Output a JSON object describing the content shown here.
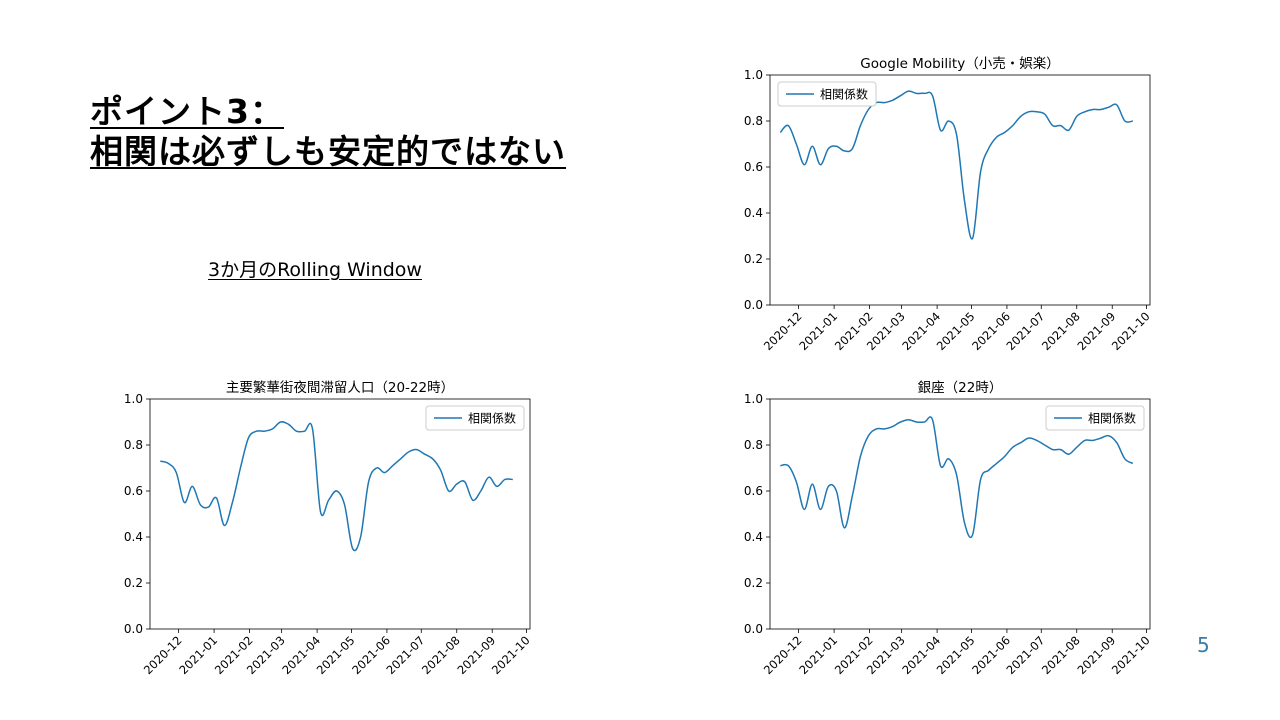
{
  "slide": {
    "heading_line1": "ポイント3：",
    "heading_line2": "相関は必ずしも安定的ではない",
    "subtitle": "3か月のRolling Window",
    "page_number": "5",
    "line_color": "#1f77b4"
  },
  "chart_data": [
    {
      "type": "line",
      "title": "Google Mobility（小売・娯楽）",
      "legend": "top-left",
      "series": [
        {
          "name": "相関係数",
          "x": [
            "2020-11-15",
            "2020-11-22",
            "2020-11-29",
            "2020-12-06",
            "2020-12-13",
            "2020-12-20",
            "2020-12-27",
            "2021-01-03",
            "2021-01-10",
            "2021-01-17",
            "2021-01-24",
            "2021-01-31",
            "2021-02-07",
            "2021-02-14",
            "2021-02-21",
            "2021-02-28",
            "2021-03-07",
            "2021-03-14",
            "2021-03-21",
            "2021-03-28",
            "2021-04-04",
            "2021-04-11",
            "2021-04-18",
            "2021-04-25",
            "2021-05-02",
            "2021-05-09",
            "2021-05-16",
            "2021-05-23",
            "2021-05-30",
            "2021-06-06",
            "2021-06-13",
            "2021-06-20",
            "2021-06-27",
            "2021-07-04",
            "2021-07-11",
            "2021-07-18",
            "2021-07-25",
            "2021-08-01",
            "2021-08-08",
            "2021-08-15",
            "2021-08-22",
            "2021-08-29",
            "2021-09-05",
            "2021-09-12",
            "2021-09-19"
          ],
          "values": [
            0.75,
            0.78,
            0.7,
            0.61,
            0.69,
            0.61,
            0.68,
            0.69,
            0.67,
            0.68,
            0.78,
            0.85,
            0.88,
            0.88,
            0.89,
            0.91,
            0.93,
            0.92,
            0.92,
            0.91,
            0.76,
            0.8,
            0.74,
            0.45,
            0.29,
            0.58,
            0.68,
            0.73,
            0.75,
            0.78,
            0.82,
            0.84,
            0.84,
            0.83,
            0.78,
            0.78,
            0.76,
            0.82,
            0.84,
            0.85,
            0.85,
            0.86,
            0.87,
            0.8,
            0.8
          ]
        }
      ],
      "ylim": [
        0,
        1
      ],
      "xlim": [
        "2020-11-06",
        "2021-10-04"
      ],
      "yticks": [
        "0.0",
        "0.2",
        "0.4",
        "0.6",
        "0.8",
        "1.0"
      ],
      "xticks": [
        {
          "date": "2020-12-01",
          "label": "2020-12"
        },
        {
          "date": "2021-01-01",
          "label": "2021-01"
        },
        {
          "date": "2021-02-01",
          "label": "2021-02"
        },
        {
          "date": "2021-03-01",
          "label": "2021-03"
        },
        {
          "date": "2021-04-01",
          "label": "2021-04"
        },
        {
          "date": "2021-05-01",
          "label": "2021-05"
        },
        {
          "date": "2021-06-01",
          "label": "2021-06"
        },
        {
          "date": "2021-07-01",
          "label": "2021-07"
        },
        {
          "date": "2021-08-01",
          "label": "2021-08"
        },
        {
          "date": "2021-09-01",
          "label": "2021-09"
        },
        {
          "date": "2021-10-01",
          "label": "2021-10"
        }
      ]
    },
    {
      "type": "line",
      "title": "主要繁華街夜間滞留人口（20-22時）",
      "legend": "top-right",
      "series": [
        {
          "name": "相関係数",
          "x": [
            "2020-11-15",
            "2020-11-22",
            "2020-11-29",
            "2020-12-06",
            "2020-12-13",
            "2020-12-20",
            "2020-12-27",
            "2021-01-03",
            "2021-01-10",
            "2021-01-17",
            "2021-01-24",
            "2021-01-31",
            "2021-02-07",
            "2021-02-14",
            "2021-02-21",
            "2021-02-28",
            "2021-03-07",
            "2021-03-14",
            "2021-03-21",
            "2021-03-28",
            "2021-04-04",
            "2021-04-11",
            "2021-04-18",
            "2021-04-25",
            "2021-05-02",
            "2021-05-09",
            "2021-05-16",
            "2021-05-23",
            "2021-05-30",
            "2021-06-06",
            "2021-06-13",
            "2021-06-20",
            "2021-06-27",
            "2021-07-04",
            "2021-07-11",
            "2021-07-18",
            "2021-07-25",
            "2021-08-01",
            "2021-08-08",
            "2021-08-15",
            "2021-08-22",
            "2021-08-29",
            "2021-09-05",
            "2021-09-12",
            "2021-09-19"
          ],
          "values": [
            0.73,
            0.72,
            0.68,
            0.55,
            0.62,
            0.54,
            0.53,
            0.57,
            0.45,
            0.55,
            0.7,
            0.83,
            0.86,
            0.86,
            0.87,
            0.9,
            0.89,
            0.86,
            0.86,
            0.87,
            0.51,
            0.56,
            0.6,
            0.54,
            0.35,
            0.4,
            0.64,
            0.7,
            0.68,
            0.71,
            0.74,
            0.77,
            0.78,
            0.76,
            0.74,
            0.69,
            0.6,
            0.63,
            0.64,
            0.56,
            0.6,
            0.66,
            0.62,
            0.65,
            0.65
          ]
        }
      ],
      "ylim": [
        0,
        1
      ],
      "xlim": [
        "2020-11-06",
        "2021-10-04"
      ],
      "yticks": [
        "0.0",
        "0.2",
        "0.4",
        "0.6",
        "0.8",
        "1.0"
      ],
      "xticks": [
        {
          "date": "2020-12-01",
          "label": "2020-12"
        },
        {
          "date": "2021-01-01",
          "label": "2021-01"
        },
        {
          "date": "2021-02-01",
          "label": "2021-02"
        },
        {
          "date": "2021-03-01",
          "label": "2021-03"
        },
        {
          "date": "2021-04-01",
          "label": "2021-04"
        },
        {
          "date": "2021-05-01",
          "label": "2021-05"
        },
        {
          "date": "2021-06-01",
          "label": "2021-06"
        },
        {
          "date": "2021-07-01",
          "label": "2021-07"
        },
        {
          "date": "2021-08-01",
          "label": "2021-08"
        },
        {
          "date": "2021-09-01",
          "label": "2021-09"
        },
        {
          "date": "2021-10-01",
          "label": "2021-10"
        }
      ]
    },
    {
      "type": "line",
      "title": "銀座（22時）",
      "legend": "top-right",
      "series": [
        {
          "name": "相関係数",
          "x": [
            "2020-11-15",
            "2020-11-22",
            "2020-11-29",
            "2020-12-06",
            "2020-12-13",
            "2020-12-20",
            "2020-12-27",
            "2021-01-03",
            "2021-01-10",
            "2021-01-17",
            "2021-01-24",
            "2021-01-31",
            "2021-02-07",
            "2021-02-14",
            "2021-02-21",
            "2021-02-28",
            "2021-03-07",
            "2021-03-14",
            "2021-03-21",
            "2021-03-28",
            "2021-04-04",
            "2021-04-11",
            "2021-04-18",
            "2021-04-25",
            "2021-05-02",
            "2021-05-09",
            "2021-05-16",
            "2021-05-23",
            "2021-05-30",
            "2021-06-06",
            "2021-06-13",
            "2021-06-20",
            "2021-06-27",
            "2021-07-04",
            "2021-07-11",
            "2021-07-18",
            "2021-07-25",
            "2021-08-01",
            "2021-08-08",
            "2021-08-15",
            "2021-08-22",
            "2021-08-29",
            "2021-09-05",
            "2021-09-12",
            "2021-09-19"
          ],
          "values": [
            0.71,
            0.71,
            0.64,
            0.52,
            0.63,
            0.52,
            0.62,
            0.6,
            0.44,
            0.58,
            0.75,
            0.84,
            0.87,
            0.87,
            0.88,
            0.9,
            0.91,
            0.9,
            0.9,
            0.91,
            0.71,
            0.74,
            0.67,
            0.46,
            0.41,
            0.65,
            0.69,
            0.72,
            0.75,
            0.79,
            0.81,
            0.83,
            0.82,
            0.8,
            0.78,
            0.78,
            0.76,
            0.79,
            0.82,
            0.82,
            0.83,
            0.84,
            0.81,
            0.74,
            0.72
          ]
        }
      ],
      "ylim": [
        0,
        1
      ],
      "xlim": [
        "2020-11-06",
        "2021-10-04"
      ],
      "yticks": [
        "0.0",
        "0.2",
        "0.4",
        "0.6",
        "0.8",
        "1.0"
      ],
      "xticks": [
        {
          "date": "2020-12-01",
          "label": "2020-12"
        },
        {
          "date": "2021-01-01",
          "label": "2021-01"
        },
        {
          "date": "2021-02-01",
          "label": "2021-02"
        },
        {
          "date": "2021-03-01",
          "label": "2021-03"
        },
        {
          "date": "2021-04-01",
          "label": "2021-04"
        },
        {
          "date": "2021-05-01",
          "label": "2021-05"
        },
        {
          "date": "2021-06-01",
          "label": "2021-06"
        },
        {
          "date": "2021-07-01",
          "label": "2021-07"
        },
        {
          "date": "2021-08-01",
          "label": "2021-08"
        },
        {
          "date": "2021-09-01",
          "label": "2021-09"
        },
        {
          "date": "2021-10-01",
          "label": "2021-10"
        }
      ]
    }
  ]
}
